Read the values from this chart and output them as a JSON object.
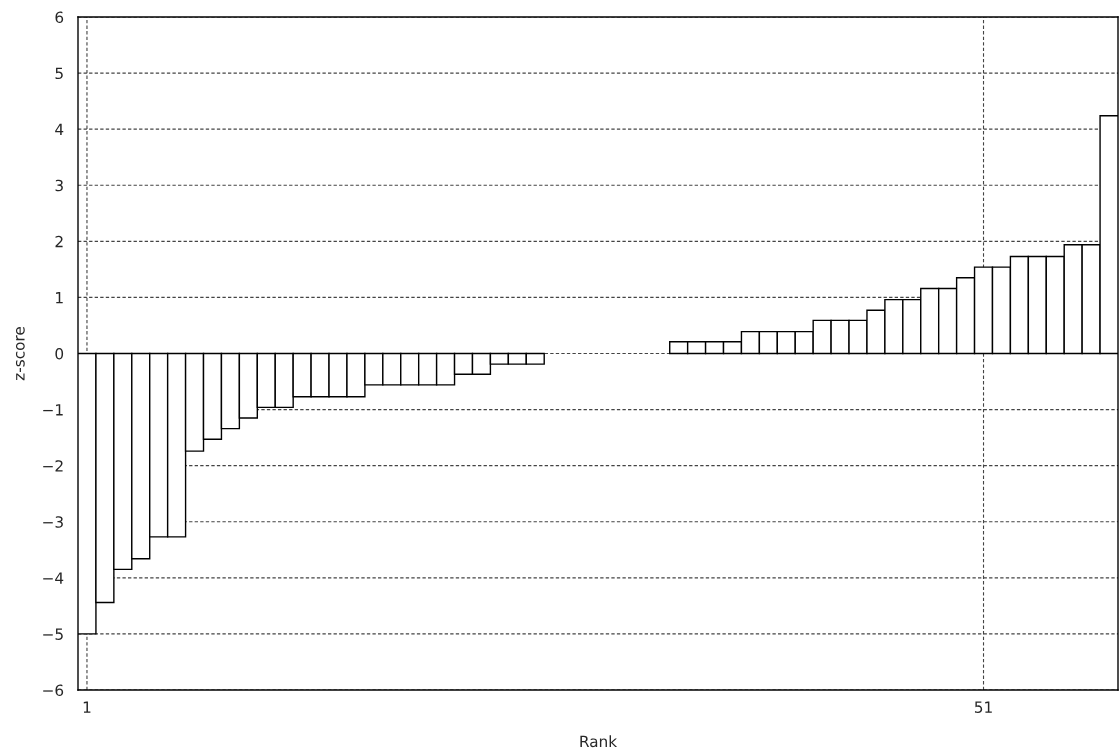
{
  "chart_data": {
    "type": "bar",
    "xlabel": "Rank",
    "ylabel": "z-score",
    "x": [
      1,
      2,
      3,
      4,
      5,
      6,
      7,
      8,
      9,
      10,
      11,
      12,
      13,
      14,
      15,
      16,
      17,
      18,
      19,
      20,
      21,
      22,
      23,
      24,
      25,
      26,
      27,
      28,
      29,
      30,
      31,
      32,
      33,
      34,
      35,
      36,
      37,
      38,
      39,
      40,
      41,
      42,
      43,
      44,
      45,
      46,
      47,
      48,
      49,
      50,
      51,
      52,
      53,
      54,
      55,
      56,
      57,
      58
    ],
    "values": [
      -5.0,
      -4.44,
      -3.85,
      -3.66,
      -3.27,
      -3.27,
      -1.74,
      -1.53,
      -1.34,
      -1.15,
      -0.96,
      -0.96,
      -0.77,
      -0.77,
      -0.77,
      -0.77,
      -0.56,
      -0.56,
      -0.56,
      -0.56,
      -0.56,
      -0.37,
      -0.37,
      -0.19,
      -0.19,
      -0.19,
      null,
      null,
      null,
      null,
      null,
      null,
      null,
      0.21,
      0.21,
      0.21,
      0.21,
      0.39,
      0.39,
      0.39,
      0.39,
      0.59,
      0.59,
      0.59,
      0.77,
      0.96,
      0.96,
      1.16,
      1.16,
      1.35,
      1.54,
      1.54,
      1.73,
      1.73,
      1.73,
      1.94,
      1.94,
      4.24
    ],
    "color": "#ffffff",
    "xlim": [
      0.5,
      58.5
    ],
    "xticks": [
      1,
      51
    ],
    "ylim": [
      -6,
      6
    ],
    "yticks": [
      -6,
      -5,
      -4,
      -3,
      -2,
      -1,
      0,
      1,
      2,
      3,
      4,
      5,
      6
    ],
    "grid": true,
    "line_style": "dashed"
  }
}
